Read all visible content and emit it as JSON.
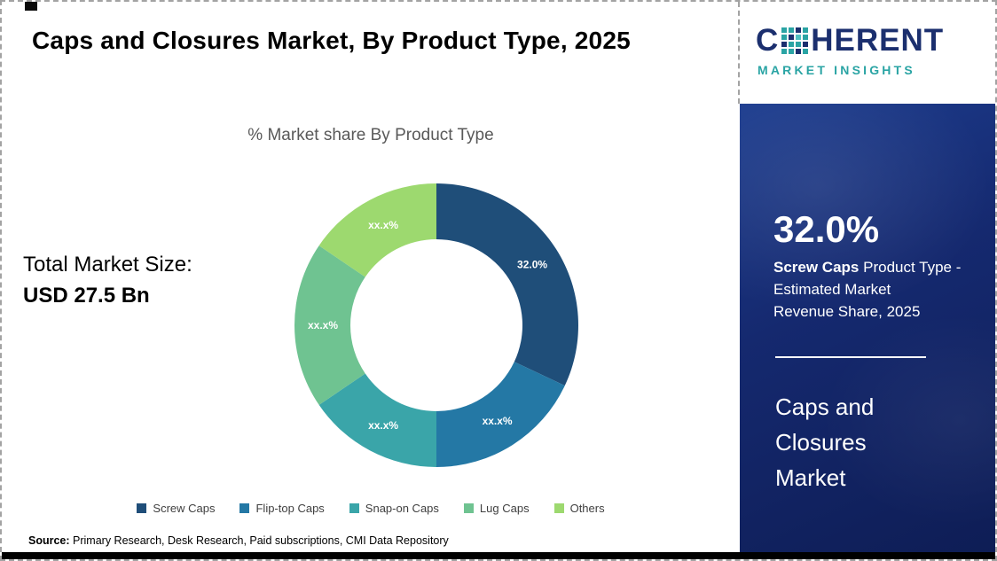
{
  "page": {
    "title": "Caps and Closures Market, By Product Type, 2025"
  },
  "logo": {
    "letter_c": "C",
    "word_rest": "HERENT",
    "tagline": "MARKET INSIGHTS",
    "navy": "#1b2f6e",
    "teal": "#2aa4a4"
  },
  "total_market": {
    "label": "Total Market Size:",
    "value": "USD 27.5 Bn"
  },
  "chart_data": {
    "type": "pie",
    "subtype": "donut",
    "title": "% Market share By Product Type",
    "start_angle_deg": 0,
    "direction": "clockwise",
    "legend_position": "bottom",
    "segments": [
      {
        "name": "Screw Caps",
        "value": 32.0,
        "label": "32.0%",
        "color": "#1f4e79"
      },
      {
        "name": "Flip-top Caps",
        "value": 18.0,
        "label": "xx.x%",
        "color": "#2478a5"
      },
      {
        "name": "Snap-on Caps",
        "value": 15.5,
        "label": "xx.x%",
        "color": "#3aa5a9"
      },
      {
        "name": "Lug Caps",
        "value": 19.0,
        "label": "xx.x%",
        "color": "#6fc391"
      },
      {
        "name": "Others",
        "value": 15.5,
        "label": "xx.x%",
        "color": "#9dd96f"
      }
    ]
  },
  "source": {
    "prefix": "Source:",
    "text": " Primary Research, Desk Research, Paid subscriptions, CMI Data Repository"
  },
  "sidebar": {
    "stat_value": "32.0%",
    "stat_bold": "Screw Caps",
    "stat_rest": " Product Type -\nEstimated Market\nRevenue Share, 2025",
    "market_name": "Caps and\nClosures\nMarket",
    "bg_color": "#15296f"
  }
}
